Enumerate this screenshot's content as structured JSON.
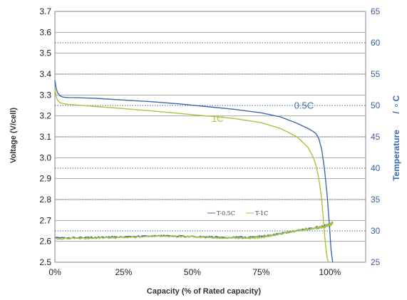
{
  "chart_data": {
    "type": "line",
    "xlabel": "Capacity  (% of Rated capacity)",
    "ylabel": "Voltage (V/cell)",
    "y2label": "Temperature",
    "y2unit": "C",
    "y2unit_sep": "/",
    "xlim": [
      0,
      113
    ],
    "ylim": [
      2.5,
      3.7
    ],
    "y2lim": [
      25,
      65
    ],
    "x_ticks": [
      {
        "v": 0,
        "label": "0%"
      },
      {
        "v": 25,
        "label": "25%"
      },
      {
        "v": 50,
        "label": "50%"
      },
      {
        "v": 75,
        "label": "75%"
      },
      {
        "v": 100,
        "label": "100%"
      }
    ],
    "y_ticks": [
      {
        "v": 2.5,
        "label": "2.5"
      },
      {
        "v": 2.6,
        "label": "2.6"
      },
      {
        "v": 2.7,
        "label": "2.7"
      },
      {
        "v": 2.8,
        "label": "2.8"
      },
      {
        "v": 2.9,
        "label": "2.9"
      },
      {
        "v": 3.0,
        "label": "3.0"
      },
      {
        "v": 3.1,
        "label": "3.1"
      },
      {
        "v": 3.2,
        "label": "3.2"
      },
      {
        "v": 3.3,
        "label": "3.3"
      },
      {
        "v": 3.4,
        "label": "3.4"
      },
      {
        "v": 3.5,
        "label": "3.5"
      },
      {
        "v": 3.6,
        "label": "3.6"
      },
      {
        "v": 3.7,
        "label": "3.7"
      }
    ],
    "y2_ticks": [
      {
        "v": 25,
        "label": "25"
      },
      {
        "v": 30,
        "label": "30"
      },
      {
        "v": 35,
        "label": "35"
      },
      {
        "v": 40,
        "label": "40"
      },
      {
        "v": 45,
        "label": "45"
      },
      {
        "v": 50,
        "label": "50"
      },
      {
        "v": 55,
        "label": "55"
      },
      {
        "v": 60,
        "label": "60"
      },
      {
        "v": 65,
        "label": "65"
      }
    ],
    "grid": true,
    "series": [
      {
        "name": "0.5C",
        "axis": "left",
        "color": "#3e6aa8",
        "x": [
          0,
          0.5,
          1,
          2,
          3,
          5,
          8,
          15,
          25,
          35,
          45,
          55,
          65,
          75,
          82,
          88,
          92,
          94,
          95,
          96,
          97,
          98,
          99,
          99.8,
          100.4,
          101
        ],
        "y": [
          3.37,
          3.33,
          3.31,
          3.295,
          3.29,
          3.288,
          3.287,
          3.284,
          3.276,
          3.268,
          3.258,
          3.245,
          3.232,
          3.215,
          3.195,
          3.165,
          3.14,
          3.125,
          3.115,
          3.09,
          3.04,
          2.95,
          2.82,
          2.68,
          2.56,
          2.5
        ]
      },
      {
        "name": "1C",
        "axis": "left",
        "color": "#a8c53a",
        "x": [
          0,
          0.5,
          1,
          2,
          4,
          8,
          15,
          25,
          35,
          45,
          55,
          65,
          75,
          82,
          88,
          92,
          94,
          95,
          96,
          97,
          97.5,
          98,
          98.5,
          99,
          99.5
        ],
        "y": [
          3.33,
          3.29,
          3.275,
          3.262,
          3.256,
          3.252,
          3.245,
          3.235,
          3.224,
          3.212,
          3.2,
          3.188,
          3.168,
          3.14,
          3.1,
          3.05,
          3.0,
          2.96,
          2.9,
          2.8,
          2.72,
          2.64,
          2.57,
          2.52,
          2.5
        ]
      },
      {
        "name": "T-0.5C",
        "axis": "right",
        "color": "#3e6aa8",
        "x": [
          0,
          10,
          20,
          30,
          40,
          50,
          60,
          70,
          75,
          80,
          85,
          90,
          95,
          98,
          100,
          101
        ],
        "y": [
          28.9,
          28.9,
          29.0,
          29.1,
          29.2,
          29.1,
          29.0,
          28.95,
          29.1,
          29.4,
          29.8,
          30.2,
          30.5,
          30.7,
          31.0,
          31.3
        ]
      },
      {
        "name": "T-1C",
        "axis": "right",
        "color": "#a8c53a",
        "x": [
          0,
          10,
          20,
          30,
          40,
          50,
          60,
          70,
          75,
          80,
          85,
          90,
          95,
          98,
          100,
          101
        ],
        "y": [
          28.75,
          28.8,
          28.9,
          29.0,
          29.15,
          29.05,
          28.9,
          28.85,
          29.0,
          29.35,
          29.8,
          30.15,
          30.45,
          30.65,
          31.0,
          31.2
        ]
      }
    ],
    "annotations": [
      {
        "text": "0.5C",
        "x": 87,
        "y": 3.235,
        "color": "#3e6aa8"
      },
      {
        "text": "1C",
        "x": 57,
        "y": 3.172,
        "color": "#a8c53a"
      }
    ],
    "legend": {
      "placement": "bottom-center",
      "entries": [
        {
          "label": "T-0.5C",
          "color": "#3e6aa8"
        },
        {
          "label": "T-1C",
          "color": "#a8c53a"
        }
      ]
    }
  }
}
